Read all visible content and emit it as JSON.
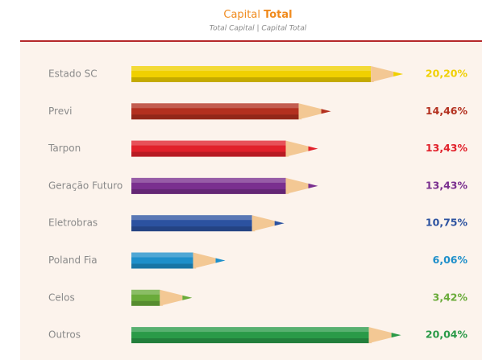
{
  "chart_data": {
    "type": "bar",
    "orientation": "horizontal",
    "title": [
      "Capital",
      "Total"
    ],
    "subtitle": "Total Capital | Capital Total",
    "categories": [
      "Estado SC",
      "Previ",
      "Tarpon",
      "Geração Futuro",
      "Eletrobras",
      "Poland Fia",
      "Celos",
      "Outros"
    ],
    "values": [
      20.2,
      14.46,
      13.43,
      13.43,
      10.75,
      6.06,
      3.42,
      20.04
    ],
    "value_labels": [
      "20,20%",
      "14,46%",
      "13,43%",
      "13,43%",
      "10,75%",
      "6,06%",
      "3,42%",
      "20,04%"
    ],
    "colors": [
      "#f0d000",
      "#b3301f",
      "#e1212b",
      "#7a2f8f",
      "#2c52a0",
      "#1e8fca",
      "#6aab3a",
      "#2a9a48"
    ]
  }
}
